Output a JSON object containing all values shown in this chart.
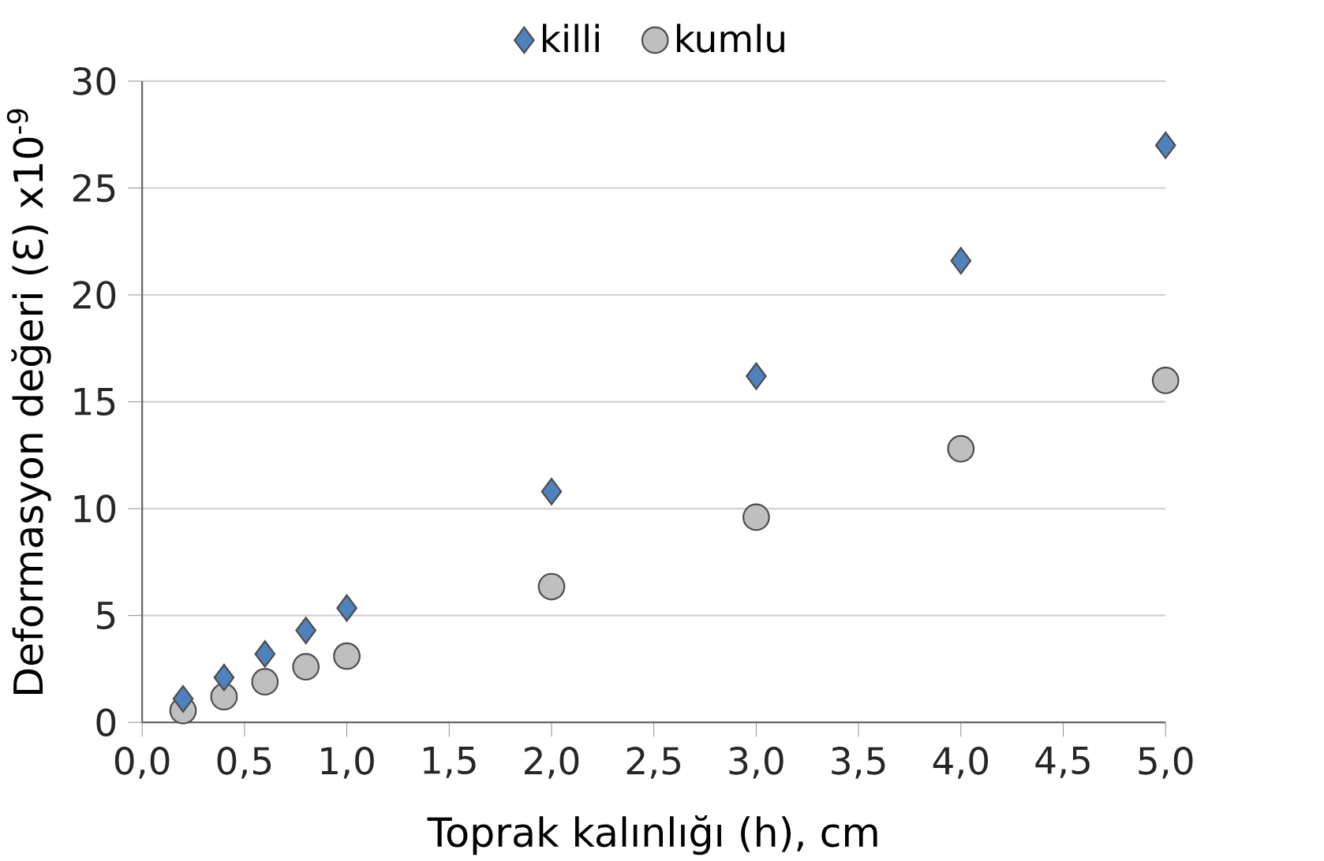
{
  "chart_data": {
    "type": "scatter",
    "xlabel": "Toprak kalınlığı (h), cm",
    "ylabel": "Deformasyon değeri (Ɛ) x10$^{-9}$",
    "x": [
      0.2,
      0.4,
      0.6,
      0.8,
      1.0,
      2.0,
      3.0,
      4.0,
      5.0
    ],
    "series": [
      {
        "name": "killi",
        "color": "#4f81bd",
        "marker": "diamond",
        "values": [
          1.1,
          2.1,
          3.2,
          4.3,
          5.35,
          10.8,
          16.2,
          21.6,
          27.0
        ]
      },
      {
        "name": "kumlu",
        "color": "#bfbfbf",
        "marker": "circle",
        "values": [
          0.55,
          1.2,
          1.9,
          2.6,
          3.1,
          6.35,
          9.6,
          12.8,
          16.0
        ]
      }
    ],
    "xlim": [
      0,
      5
    ],
    "ylim": [
      0,
      30
    ],
    "xticks": [
      {
        "value": 0,
        "label": "0,0"
      },
      {
        "value": 0.5,
        "label": "0,5"
      },
      {
        "value": 1,
        "label": "1,0"
      },
      {
        "value": 1.5,
        "label": "1,5"
      },
      {
        "value": 2,
        "label": "2,0"
      },
      {
        "value": 2.5,
        "label": "2,5"
      },
      {
        "value": 3,
        "label": "3,0"
      },
      {
        "value": 3.5,
        "label": "3,5"
      },
      {
        "value": 4,
        "label": "4,0"
      },
      {
        "value": 4.5,
        "label": "4,5"
      },
      {
        "value": 5,
        "label": "5,0"
      }
    ],
    "yticks": [
      0,
      5,
      10,
      15,
      20,
      25,
      30
    ],
    "grid": "y",
    "legend": "top"
  }
}
